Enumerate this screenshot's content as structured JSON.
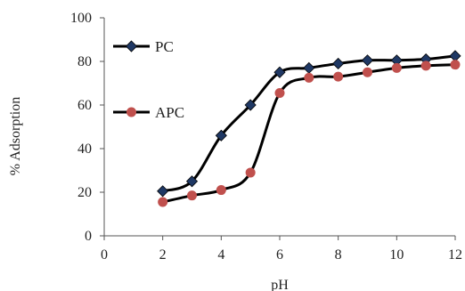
{
  "chart_data": {
    "type": "line",
    "title": "",
    "xlabel": "pH",
    "ylabel": "% Adsorption",
    "xlim": [
      0,
      12
    ],
    "ylim": [
      0,
      100
    ],
    "x_ticks": [
      0,
      2,
      4,
      6,
      8,
      10,
      12
    ],
    "y_ticks": [
      0,
      20,
      40,
      60,
      80,
      100
    ],
    "grid": false,
    "smooth": true,
    "legend_position": "top-left",
    "series": [
      {
        "name": "PC",
        "marker": "diamond",
        "color": "#000000",
        "marker_color": "#1f3864",
        "x": [
          2,
          3,
          4,
          5,
          6,
          7,
          8,
          9,
          10,
          11,
          12
        ],
        "y": [
          20.5,
          25,
          46,
          60,
          75,
          77,
          79,
          80.5,
          80.5,
          81,
          82.5
        ]
      },
      {
        "name": "APC",
        "marker": "circle",
        "color": "#000000",
        "marker_color": "#c0504d",
        "x": [
          2,
          3,
          4,
          5,
          6,
          7,
          8,
          9,
          10,
          11,
          12
        ],
        "y": [
          15.5,
          18.5,
          21,
          29,
          65.5,
          72.5,
          73,
          75,
          77,
          78,
          78.5
        ]
      }
    ]
  }
}
